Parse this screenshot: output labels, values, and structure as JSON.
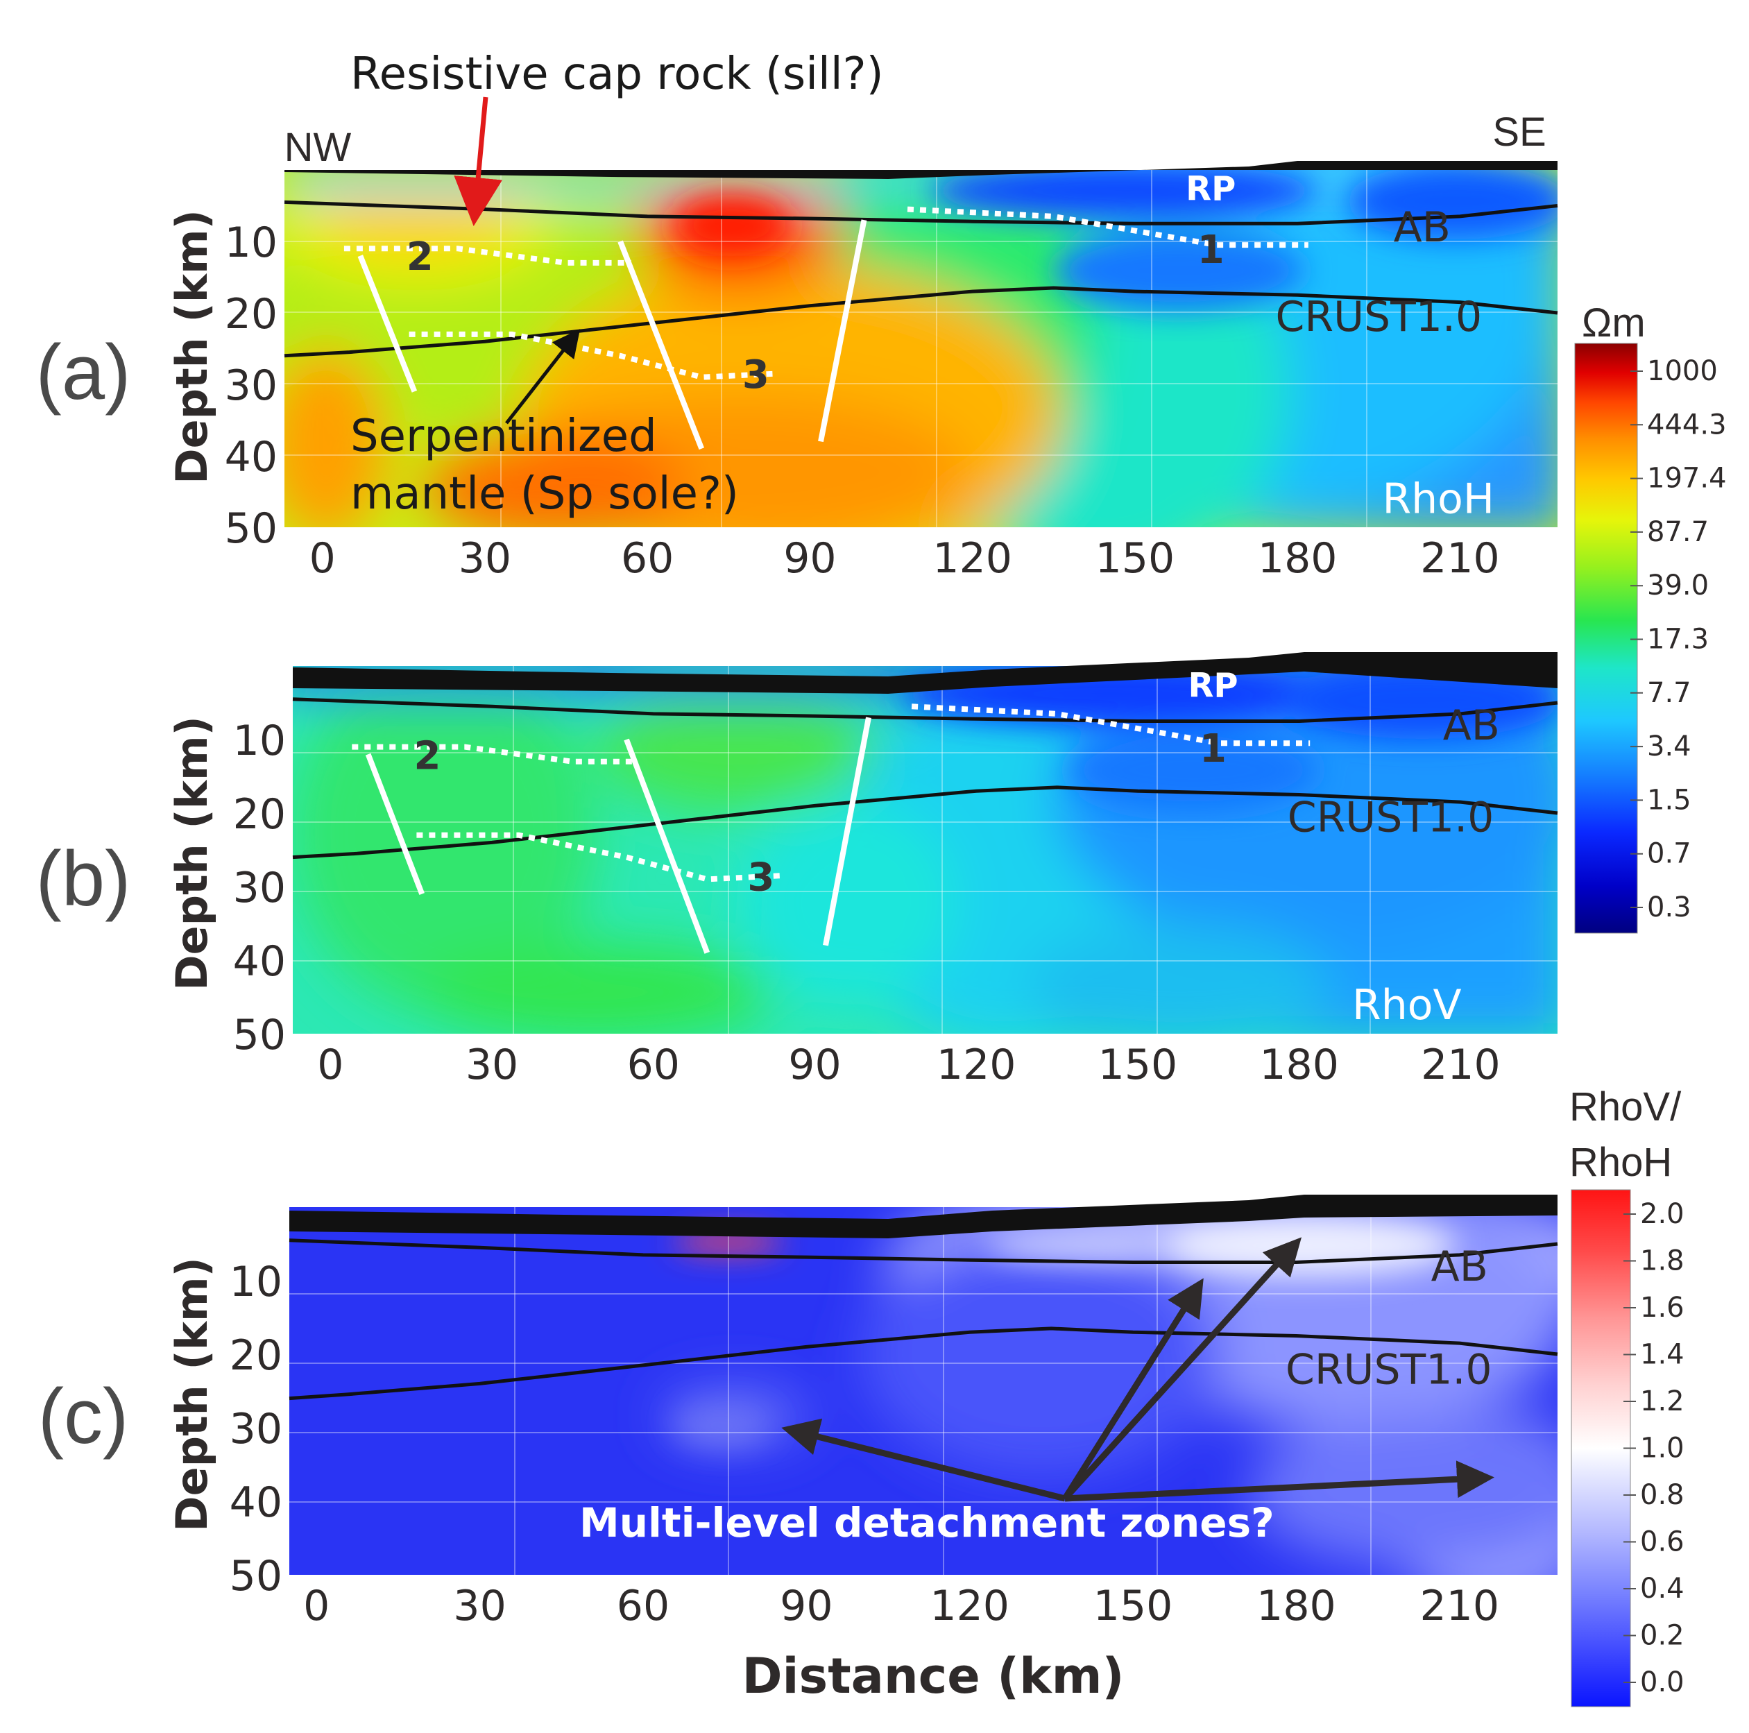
{
  "chart_data": [
    {
      "id": "a",
      "type": "heatmap",
      "panel_label": "(a)",
      "variable": "RhoH",
      "xlabel": "",
      "ylabel": "Depth (km)",
      "x_ticks": [
        "0",
        "30",
        "60",
        "90",
        "120",
        "150",
        "180",
        "210"
      ],
      "y_ticks": [
        "10",
        "20",
        "30",
        "40",
        "50"
      ],
      "xlim": [
        -7,
        228
      ],
      "ylim": [
        50,
        0
      ],
      "direction_left": "NW",
      "direction_right": "SE",
      "boundaries": [
        {
          "name": "AB",
          "points": [
            [
              -7,
              4.5
            ],
            [
              30,
              5.5
            ],
            [
              60,
              6.5
            ],
            [
              90,
              6.8
            ],
            [
              120,
              7.2
            ],
            [
              150,
              7.5
            ],
            [
              180,
              7.5
            ],
            [
              210,
              6.5
            ],
            [
              228,
              5.0
            ]
          ]
        },
        {
          "name": "CRUST1.0",
          "points": [
            [
              -7,
              26
            ],
            [
              5,
              25.5
            ],
            [
              30,
              24
            ],
            [
              60,
              21.5
            ],
            [
              90,
              19
            ],
            [
              120,
              17
            ],
            [
              135,
              16.5
            ],
            [
              150,
              17
            ],
            [
              180,
              17.5
            ],
            [
              210,
              18.5
            ],
            [
              228,
              20
            ]
          ]
        }
      ],
      "faults": [
        {
          "points": [
            [
              7,
              12
            ],
            [
              17,
              31
            ]
          ]
        },
        {
          "points": [
            [
              55,
              10
            ],
            [
              70,
              39
            ]
          ]
        },
        {
          "points": [
            [
              100,
              7
            ],
            [
              92,
              38
            ]
          ]
        }
      ],
      "horizons": [
        {
          "label": "1",
          "points": [
            [
              108,
              5.5
            ],
            [
              135,
              6.5
            ],
            [
              150,
              8.5
            ],
            [
              165,
              10.5
            ],
            [
              182,
              10.5
            ]
          ],
          "label_at": [
            164,
            13
          ]
        },
        {
          "label": "2",
          "points": [
            [
              4,
              11
            ],
            [
              25,
              11
            ],
            [
              45,
              13
            ],
            [
              57,
              13
            ]
          ],
          "label_at": [
            18,
            14
          ]
        },
        {
          "label": "3",
          "points": [
            [
              16,
              23
            ],
            [
              35,
              23
            ],
            [
              55,
              26
            ],
            [
              70,
              29
            ],
            [
              84,
              28.5
            ]
          ],
          "label_at": [
            80,
            30.5
          ]
        }
      ],
      "region_labels": [
        {
          "text": "RP",
          "at": [
            164,
            4.2
          ]
        },
        {
          "text": "AB",
          "at": [
            203,
            10
          ]
        },
        {
          "text": "CRUST1.0",
          "at": [
            195,
            22.5
          ]
        },
        {
          "text": "RhoH",
          "at": [
            206,
            48
          ]
        }
      ]
    },
    {
      "id": "b",
      "type": "heatmap",
      "panel_label": "(b)",
      "variable": "RhoV",
      "xlabel": "",
      "ylabel": "Depth (km)",
      "x_ticks": [
        "0",
        "30",
        "60",
        "90",
        "120",
        "150",
        "180",
        "210"
      ],
      "y_ticks": [
        "10",
        "20",
        "30",
        "40",
        "50"
      ],
      "xlim": [
        -7,
        228
      ],
      "ylim": [
        50,
        0
      ],
      "boundaries": [
        {
          "name": "AB",
          "points": [
            [
              -7,
              4.5
            ],
            [
              30,
              5.5
            ],
            [
              60,
              6.5
            ],
            [
              90,
              6.8
            ],
            [
              120,
              7.2
            ],
            [
              150,
              7.5
            ],
            [
              180,
              7.5
            ],
            [
              210,
              6.5
            ],
            [
              228,
              5.0
            ]
          ]
        },
        {
          "name": "CRUST1.0",
          "points": [
            [
              -7,
              26
            ],
            [
              5,
              25.5
            ],
            [
              30,
              24
            ],
            [
              60,
              21.5
            ],
            [
              90,
              19
            ],
            [
              120,
              17
            ],
            [
              135,
              16.5
            ],
            [
              150,
              17
            ],
            [
              180,
              17.5
            ],
            [
              210,
              18.5
            ],
            [
              228,
              20
            ]
          ]
        }
      ],
      "faults": [
        {
          "points": [
            [
              7,
              12
            ],
            [
              17,
              31
            ]
          ]
        },
        {
          "points": [
            [
              55,
              10
            ],
            [
              70,
              39
            ]
          ]
        },
        {
          "points": [
            [
              100,
              7
            ],
            [
              92,
              38
            ]
          ]
        }
      ],
      "horizons": [
        {
          "label": "1",
          "points": [
            [
              108,
              5.5
            ],
            [
              135,
              6.5
            ],
            [
              150,
              8.5
            ],
            [
              165,
              10.5
            ],
            [
              182,
              10.5
            ]
          ],
          "label_at": [
            164,
            13
          ]
        },
        {
          "label": "2",
          "points": [
            [
              4,
              11
            ],
            [
              25,
              11
            ],
            [
              45,
              13
            ],
            [
              57,
              13
            ]
          ],
          "label_at": [
            18,
            14
          ]
        },
        {
          "label": "3",
          "points": [
            [
              16,
              23
            ],
            [
              35,
              23
            ],
            [
              55,
              26
            ],
            [
              70,
              29
            ],
            [
              84,
              28.5
            ]
          ],
          "label_at": [
            80,
            30.5
          ]
        }
      ],
      "region_labels": [
        {
          "text": "RP",
          "at": [
            164,
            4.2
          ]
        },
        {
          "text": "AB",
          "at": [
            212,
            10
          ]
        },
        {
          "text": "CRUST1.0",
          "at": [
            197,
            22.5
          ]
        },
        {
          "text": "RhoV",
          "at": [
            200,
            48
          ]
        }
      ]
    },
    {
      "id": "c",
      "type": "heatmap",
      "panel_label": "(c)",
      "variable": "RhoV/RhoH",
      "xlabel": "Distance (km)",
      "ylabel": "Depth (km)",
      "x_ticks": [
        "0",
        "30",
        "60",
        "90",
        "120",
        "150",
        "180",
        "210"
      ],
      "y_ticks": [
        "10",
        "20",
        "30",
        "40",
        "50"
      ],
      "xlim": [
        -5,
        228
      ],
      "ylim": [
        50,
        0
      ],
      "boundaries": [
        {
          "name": "AB",
          "points": [
            [
              -5,
              4.5
            ],
            [
              30,
              5.5
            ],
            [
              60,
              6.5
            ],
            [
              90,
              6.8
            ],
            [
              120,
              7.2
            ],
            [
              150,
              7.5
            ],
            [
              180,
              7.5
            ],
            [
              210,
              6.5
            ],
            [
              228,
              5.0
            ]
          ]
        },
        {
          "name": "CRUST1.0",
          "points": [
            [
              -5,
              26
            ],
            [
              5,
              25.5
            ],
            [
              30,
              24
            ],
            [
              60,
              21.5
            ],
            [
              90,
              19
            ],
            [
              120,
              17
            ],
            [
              135,
              16.5
            ],
            [
              150,
              17
            ],
            [
              180,
              17.5
            ],
            [
              210,
              18.5
            ],
            [
              228,
              20
            ]
          ]
        }
      ],
      "region_labels": [
        {
          "text": "AB",
          "at": [
            210,
            10
          ]
        },
        {
          "text": "CRUST1.0",
          "at": [
            197,
            24
          ]
        }
      ]
    }
  ],
  "annotations": {
    "cap_rock": "Resistive cap rock (sill?)",
    "serpentinized_line1": "Serpentinized",
    "serpentinized_line2": "mantle (Sp sole?)",
    "detachment": "Multi-level detachment zones?"
  },
  "colorbar_resistivity": {
    "title": "Ωm",
    "tick_labels": [
      "1000",
      "444.3",
      "197.4",
      "87.7",
      "39.0",
      "17.3",
      "7.7",
      "3.4",
      "1.5",
      "0.7",
      "0.3"
    ]
  },
  "colorbar_ratio": {
    "title_line1": "RhoV/",
    "title_line2": "RhoH",
    "tick_labels": [
      "2.0",
      "1.8",
      "1.6",
      "1.4",
      "1.2",
      "1.0",
      "0.8",
      "0.6",
      "0.4",
      "0.2",
      "0.0"
    ]
  },
  "colors": {
    "rho_ramp": [
      "#000080",
      "#0000c8",
      "#0a28ff",
      "#1478ff",
      "#1ec8ff",
      "#1ee6c8",
      "#28e650",
      "#96f01e",
      "#e6f50a",
      "#ffc800",
      "#ff8c00",
      "#ff4600",
      "#e10000",
      "#8b0000"
    ],
    "ratio_ramp": [
      "#0a14ff",
      "#3c46ff",
      "#7882ff",
      "#b4b9ff",
      "#e6e8ff",
      "#ffffff",
      "#ffd2d2",
      "#ff9696",
      "#ff4b4b",
      "#ff1414"
    ]
  }
}
